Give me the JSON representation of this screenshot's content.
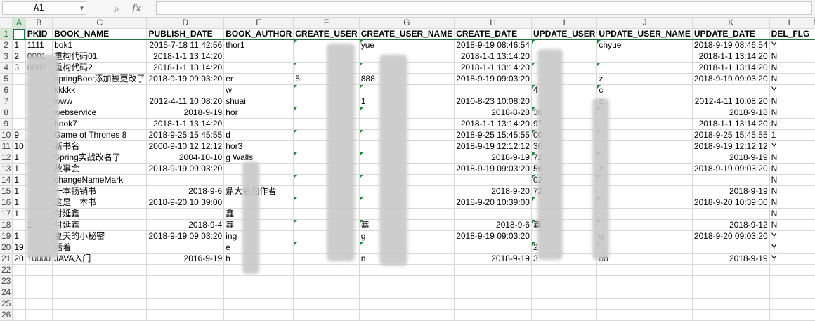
{
  "formula_bar": {
    "name_box": "A1",
    "magnify_icon": "⌕",
    "fx_label": "fx",
    "formula": ""
  },
  "columns": [
    "A",
    "B",
    "C",
    "D",
    "E",
    "F",
    "G",
    "H",
    "I",
    "J",
    "K",
    "L",
    "M"
  ],
  "rows": [
    {
      "n": "1",
      "cells": [
        "",
        "PKID",
        "BOOK_NAME",
        "PUBLISH_DATE",
        "BOOK_AUTHOR",
        "CREATE_USER",
        "CREATE_USER_NAME",
        "CREATE_DATE",
        "UPDATE_USER",
        "UPDATE_USER_NAME",
        "UPDATE_DATE",
        "DEL_FLG",
        ""
      ]
    },
    {
      "n": "2",
      "cells": [
        "1",
        "1111",
        "bok1",
        "2015-7-18 11:42:56",
        "thor1",
        "",
        "yue",
        "2018-9-19 08:46:54",
        "",
        "chyue",
        "2018-9-19 08:46:54",
        "Y",
        ""
      ]
    },
    {
      "n": "3",
      "cells": [
        "2",
        "0001",
        "重构代码01",
        "2018-1-1 13:14:20",
        "",
        "",
        "",
        "2018-1-1 13:14:20",
        "",
        "",
        "2018-1-1 13:14:20",
        "N",
        ""
      ]
    },
    {
      "n": "4",
      "cells": [
        "3",
        "0002",
        "重构代码2",
        "2018-1-1 13:14:20",
        "",
        "",
        "",
        "2018-1-1 13:14:20",
        "",
        "",
        "2018-1-1 13:14:20",
        "N",
        ""
      ]
    },
    {
      "n": "5",
      "cells": [
        "",
        "",
        "springBoot添加被更改了",
        "2018-9-19 09:03:20",
        "er",
        "5",
        "888",
        "2018-9-19 09:03:20",
        "",
        "z",
        "2018-9-19 09:03:20",
        "N",
        ""
      ]
    },
    {
      "n": "6",
      "cells": [
        "",
        "",
        "kkkkk",
        "",
        "w",
        "",
        "",
        "",
        "4",
        "c",
        "",
        "Y",
        ""
      ]
    },
    {
      "n": "7",
      "cells": [
        "",
        "",
        "www",
        "2012-4-11 10:08:20",
        "shuai",
        "",
        "1",
        "2010-8-23 10:08:20",
        "",
        "z",
        "2012-4-11 10:08:20",
        "N",
        ""
      ]
    },
    {
      "n": "8",
      "cells": [
        "",
        "",
        "webservice",
        "2018-9-19",
        "hor",
        "",
        "",
        "2018-8-28",
        "30",
        "",
        "2018-9-18",
        "N",
        ""
      ]
    },
    {
      "n": "9",
      "cells": [
        "",
        "",
        "book7",
        "2018-1-1 13:14:20",
        "",
        "",
        "",
        "2018-1-1 13:14:20",
        "97",
        "",
        "2018-1-1 13:14:20",
        "N",
        ""
      ]
    },
    {
      "n": "10",
      "cells": [
        "9",
        "",
        "Game of Thrones 8",
        "2018-9-25 15:45:55",
        "d",
        "",
        "",
        "2018-9-25 15:45:55",
        "00",
        "",
        "2018-9-25 15:45:55",
        "1",
        ""
      ]
    },
    {
      "n": "11",
      "cells": [
        "10",
        "",
        "新书名",
        "2000-9-10 12:12:12",
        "hor3",
        "",
        "",
        "2018-9-19 12:12:12",
        "30",
        "",
        "2018-9-19 12:12:12",
        "Y",
        ""
      ]
    },
    {
      "n": "12",
      "cells": [
        "1",
        "",
        "Spring实战改名了",
        "2004-10-10",
        "g Walls",
        "",
        "",
        "2018-9-19",
        "72",
        "",
        "2018-9-19",
        "N",
        ""
      ]
    },
    {
      "n": "13",
      "cells": [
        "1",
        "",
        "故事会",
        "2018-9-19 09:03:20",
        "",
        "",
        "",
        "2018-9-19 09:03:20",
        "56",
        "z",
        "2018-9-19 09:03:20",
        "N",
        ""
      ]
    },
    {
      "n": "14",
      "cells": [
        "1",
        "",
        "changeNameMark",
        "",
        "",
        "",
        "",
        "",
        "02",
        "",
        "",
        "N",
        ""
      ]
    },
    {
      "n": "15",
      "cells": [
        "1",
        "",
        "一本畅销书",
        "2018-9-6",
        "鼎大名的作者",
        "",
        "",
        "2018-9-20",
        "72",
        "",
        "2018-9-19",
        "N",
        ""
      ]
    },
    {
      "n": "16",
      "cells": [
        "1",
        "",
        "这是一本书",
        "2018-9-20 10:39:00",
        "",
        "",
        "",
        "2018-9-20 10:39:00",
        "",
        "",
        "2018-9-20 10:39:00",
        "N",
        ""
      ]
    },
    {
      "n": "17",
      "cells": [
        "1",
        "",
        "付延鑫",
        "",
        "鑫",
        "",
        "",
        "",
        "",
        "",
        "",
        "N",
        ""
      ]
    },
    {
      "n": "18",
      "cells": [
        "",
        "1",
        "付延鑫",
        "2018-9-4",
        "鑫",
        "",
        "鑫",
        "2018-9-6",
        "鑫",
        "",
        "2018-9-12",
        "N",
        ""
      ]
    },
    {
      "n": "19",
      "cells": [
        "1",
        "",
        "夏天的小秘密",
        "2018-9-19 09:03:20",
        "ing",
        "",
        "g",
        "2018-9-19 09:03:20",
        "",
        "g",
        "2018-9-20 09:03:20",
        "Y",
        ""
      ]
    },
    {
      "n": "20",
      "cells": [
        "19",
        "",
        "活着",
        "",
        "e",
        "",
        "",
        "",
        "2",
        "",
        "",
        "Y",
        ""
      ]
    },
    {
      "n": "21",
      "cells": [
        "20",
        "10000",
        "JAVA入门",
        "2016-9-19",
        "h",
        "",
        "n",
        "2018-9-19",
        "3",
        "nh",
        "2018-9-19",
        "Y",
        ""
      ]
    },
    {
      "n": "22",
      "cells": [
        "",
        "",
        "",
        "",
        "",
        "",
        "",
        "",
        "",
        "",
        "",
        "",
        ""
      ]
    },
    {
      "n": "23",
      "cells": [
        "",
        "",
        "",
        "",
        "",
        "",
        "",
        "",
        "",
        "",
        "",
        "",
        ""
      ]
    },
    {
      "n": "24",
      "cells": [
        "",
        "",
        "",
        "",
        "",
        "",
        "",
        "",
        "",
        "",
        "",
        "",
        ""
      ]
    },
    {
      "n": "25",
      "cells": [
        "",
        "",
        "",
        "",
        "",
        "",
        "",
        "",
        "",
        "",
        "",
        "",
        ""
      ]
    },
    {
      "n": "26",
      "cells": [
        "",
        "",
        "",
        "",
        "",
        "",
        "",
        "",
        "",
        "",
        "",
        "",
        ""
      ]
    }
  ],
  "colors": {
    "accent": "#217346",
    "header_bg": "#f2f2f2",
    "grid_line": "#d9d9d9"
  }
}
